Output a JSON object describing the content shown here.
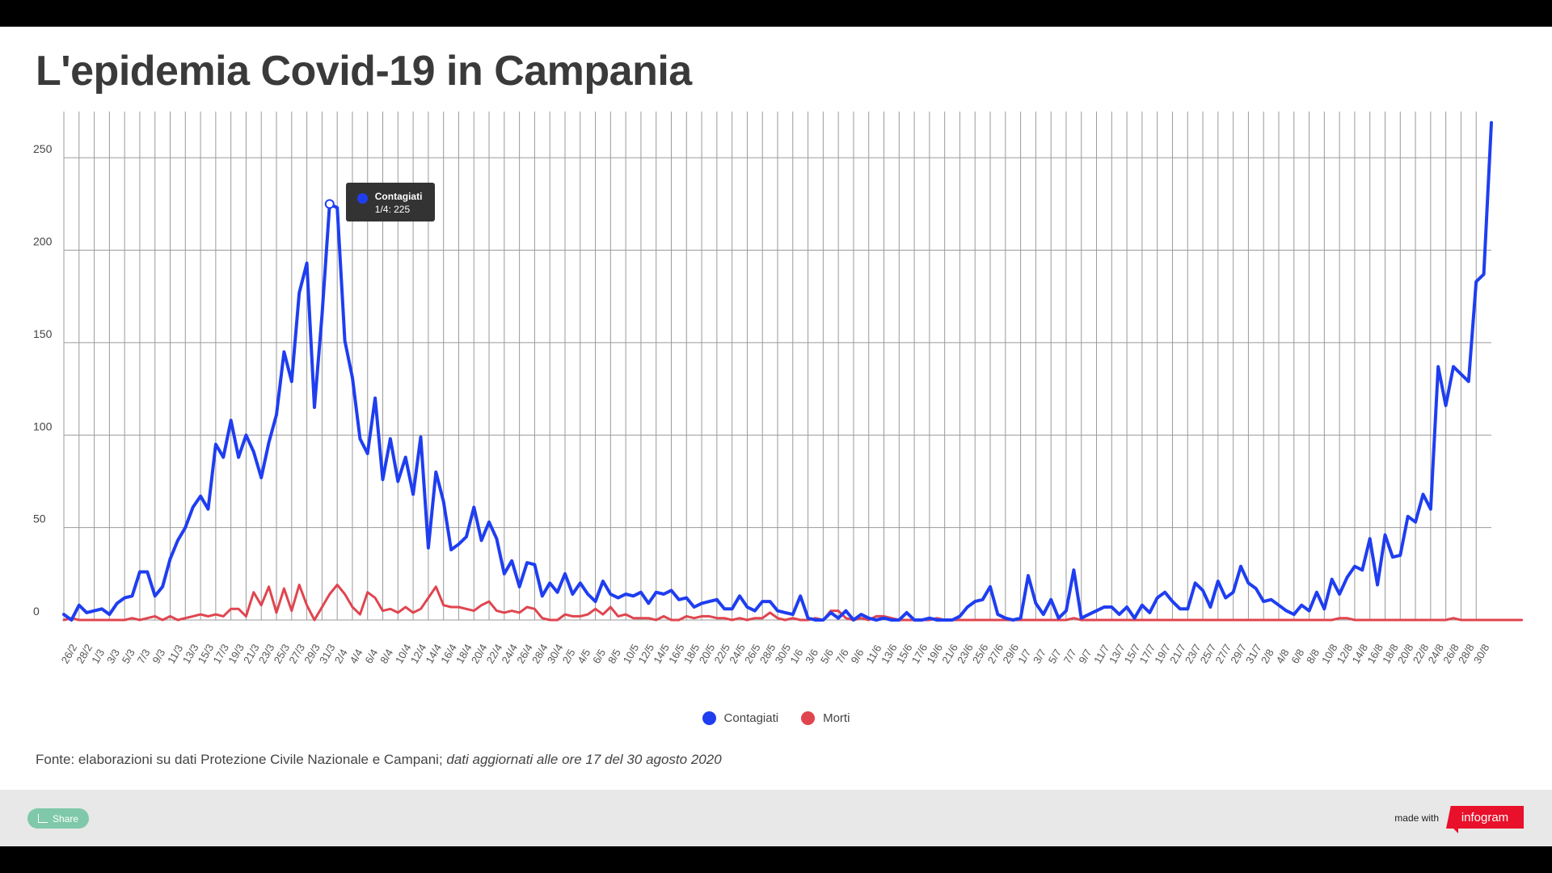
{
  "title": "L'epidemia Covid-19 in Campania",
  "source_plain": "Fonte: elaborazioni su dati Protezione Civile Nazionale e Campani; ",
  "source_italic": "dati aggiornati alle ore 17 del 30 agosto 2020",
  "footer": {
    "share_label": "Share",
    "made_with": "made with",
    "brand": "infogram"
  },
  "tooltip": {
    "series": "Contagiati",
    "value": "1/4: 225"
  },
  "colors": {
    "contagiati": "#1f3ef0",
    "morti": "#e0454f",
    "grid": "#9a9a9a"
  },
  "chart_data": {
    "type": "line",
    "title": "L'epidemia Covid-19 in Campania",
    "xlabel": "",
    "ylabel": "",
    "ylim": [
      0,
      275
    ],
    "yticks": [
      0,
      50,
      100,
      150,
      200,
      250
    ],
    "x_start": "26/2",
    "x_end": "30/8",
    "x_tick_labels": [
      "26/2",
      "28/2",
      "1/3",
      "3/3",
      "5/3",
      "7/3",
      "9/3",
      "11/3",
      "13/3",
      "15/3",
      "17/3",
      "19/3",
      "21/3",
      "23/3",
      "25/3",
      "27/3",
      "29/3",
      "31/3",
      "2/4",
      "4/4",
      "6/4",
      "8/4",
      "10/4",
      "12/4",
      "14/4",
      "16/4",
      "18/4",
      "20/4",
      "22/4",
      "24/4",
      "26/4",
      "28/4",
      "30/4",
      "2/5",
      "4/5",
      "6/5",
      "8/5",
      "10/5",
      "12/5",
      "14/5",
      "16/5",
      "18/5",
      "20/5",
      "22/5",
      "24/5",
      "26/5",
      "28/5",
      "30/5",
      "1/6",
      "3/6",
      "5/6",
      "7/6",
      "9/6",
      "11/6",
      "13/6",
      "15/6",
      "17/6",
      "19/6",
      "21/6",
      "23/6",
      "25/6",
      "27/6",
      "29/6",
      "1/7",
      "3/7",
      "5/7",
      "7/7",
      "9/7",
      "11/7",
      "13/7",
      "15/7",
      "17/7",
      "19/7",
      "21/7",
      "23/7",
      "25/7",
      "27/7",
      "29/7",
      "31/7",
      "2/8",
      "4/8",
      "6/8",
      "8/8",
      "10/8",
      "12/8",
      "14/8",
      "16/8",
      "18/8",
      "20/8",
      "22/8",
      "24/8",
      "26/8",
      "28/8",
      "30/8"
    ],
    "legend": [
      "Contagiati",
      "Morti"
    ],
    "legend_position": "bottom",
    "grid": true,
    "series": [
      {
        "name": "Contagiati",
        "values": [
          3,
          0,
          8,
          4,
          5,
          6,
          3,
          9,
          12,
          13,
          26,
          26,
          13,
          18,
          33,
          43,
          50,
          61,
          67,
          60,
          95,
          88,
          108,
          88,
          100,
          91,
          77,
          96,
          111,
          145,
          129,
          177,
          193,
          115,
          165,
          225,
          223,
          151,
          131,
          98,
          90,
          120,
          76,
          98,
          75,
          88,
          68,
          99,
          39,
          80,
          64,
          38,
          41,
          45,
          61,
          43,
          53,
          44,
          25,
          32,
          18,
          31,
          30,
          13,
          20,
          15,
          25,
          14,
          20,
          14,
          10,
          21,
          14,
          12,
          14,
          13,
          15,
          9,
          15,
          14,
          16,
          11,
          12,
          7,
          9,
          10,
          11,
          6,
          6,
          13,
          7,
          5,
          10,
          10,
          5,
          4,
          3,
          13,
          1,
          0,
          0,
          4,
          1,
          5,
          0,
          3,
          1,
          0,
          1,
          0,
          0,
          4,
          0,
          0,
          1,
          0,
          0,
          0,
          2,
          7,
          10,
          11,
          18,
          3,
          1,
          0,
          1,
          24,
          9,
          3,
          11,
          1,
          5,
          27,
          1,
          3,
          5,
          7,
          7,
          3,
          7,
          1,
          8,
          4,
          12,
          15,
          10,
          6,
          6,
          20,
          16,
          7,
          21,
          12,
          15,
          29,
          20,
          17,
          10,
          11,
          8,
          5,
          3,
          8,
          5,
          15,
          6,
          22,
          14,
          23,
          29,
          27,
          44,
          19,
          46,
          34,
          35,
          56,
          53,
          68,
          60,
          137,
          116,
          137,
          133,
          129,
          183,
          187,
          269
        ]
      },
      {
        "name": "Morti",
        "values": [
          0,
          1,
          0,
          0,
          0,
          0,
          0,
          0,
          0,
          1,
          0,
          1,
          2,
          0,
          2,
          0,
          1,
          2,
          3,
          2,
          3,
          2,
          6,
          6,
          2,
          15,
          8,
          18,
          4,
          17,
          5,
          19,
          8,
          0,
          7,
          14,
          19,
          14,
          7,
          3,
          15,
          12,
          5,
          6,
          4,
          7,
          4,
          6,
          12,
          18,
          8,
          7,
          7,
          6,
          5,
          8,
          10,
          5,
          4,
          5,
          4,
          7,
          6,
          1,
          0,
          0,
          3,
          2,
          2,
          3,
          6,
          3,
          7,
          2,
          3,
          1,
          1,
          1,
          0,
          2,
          0,
          0,
          2,
          1,
          2,
          2,
          1,
          1,
          0,
          1,
          0,
          1,
          1,
          4,
          1,
          0,
          1,
          0,
          0,
          1,
          0,
          5,
          5,
          1,
          0,
          1,
          0,
          2,
          2,
          1,
          0,
          0,
          0,
          0,
          0,
          1,
          0,
          0,
          0,
          0,
          0,
          0,
          0,
          0,
          0,
          0,
          0,
          0,
          0,
          0,
          0,
          0,
          0,
          1,
          0,
          0,
          0,
          0,
          0,
          0,
          0,
          0,
          0,
          0,
          0,
          0,
          0,
          0,
          0,
          0,
          0,
          0,
          0,
          0,
          0,
          0,
          0,
          0,
          0,
          0,
          0,
          0,
          0,
          0,
          0,
          0,
          0,
          0,
          1,
          1,
          0,
          0,
          0,
          0,
          0,
          0,
          0,
          0,
          0,
          0,
          0,
          0,
          0,
          1,
          0,
          0,
          0,
          0,
          0,
          0,
          0,
          0,
          0
        ]
      }
    ]
  }
}
